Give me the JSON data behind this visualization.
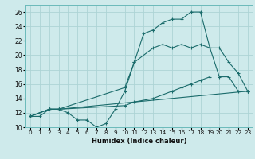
{
  "xlabel": "Humidex (Indice chaleur)",
  "bg_color": "#ceeaeb",
  "grid_color": "#add4d5",
  "line_color": "#1a6b6b",
  "xlim": [
    -0.5,
    23.5
  ],
  "ylim": [
    10,
    27
  ],
  "xticks": [
    0,
    1,
    2,
    3,
    4,
    5,
    6,
    7,
    8,
    9,
    10,
    11,
    12,
    13,
    14,
    15,
    16,
    17,
    18,
    19,
    20,
    21,
    22,
    23
  ],
  "yticks": [
    10,
    12,
    14,
    16,
    18,
    20,
    22,
    24,
    26
  ],
  "line1_x": [
    0,
    1,
    2,
    3,
    4,
    5,
    6,
    7,
    8,
    9,
    10,
    11,
    12,
    13,
    14,
    15,
    16,
    17,
    18,
    19,
    20,
    21,
    22,
    23
  ],
  "line1_y": [
    11.5,
    11.5,
    12.5,
    12.5,
    12.0,
    11.0,
    11.0,
    10.0,
    10.5,
    12.5,
    15.0,
    19.0,
    23.0,
    23.5,
    24.5,
    25.0,
    25.0,
    26.0,
    26.0,
    21.0,
    17.0,
    17.0,
    15.0,
    15.0
  ],
  "line2_x": [
    0,
    2,
    3,
    10,
    11,
    13,
    14,
    15,
    16,
    17,
    18,
    19,
    20,
    21,
    22,
    23
  ],
  "line2_y": [
    11.5,
    12.5,
    12.5,
    15.5,
    19.0,
    21.0,
    21.5,
    21.0,
    21.5,
    21.0,
    21.5,
    21.0,
    21.0,
    19.0,
    17.5,
    15.0
  ],
  "line3_x": [
    0,
    2,
    3,
    23
  ],
  "line3_y": [
    11.5,
    12.5,
    12.5,
    15.0
  ],
  "line4_x": [
    0,
    2,
    3,
    10,
    11,
    13,
    14,
    15,
    16,
    17,
    18,
    19
  ],
  "line4_y": [
    11.5,
    12.5,
    12.5,
    13.0,
    13.5,
    14.0,
    14.5,
    15.0,
    15.5,
    16.0,
    16.5,
    17.0
  ]
}
